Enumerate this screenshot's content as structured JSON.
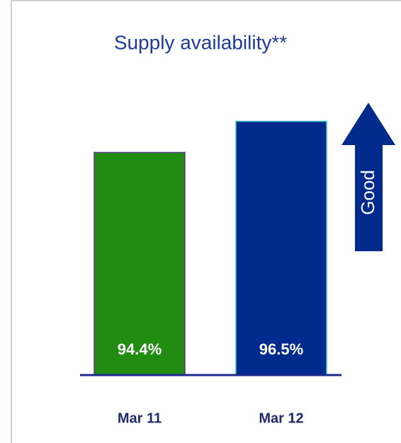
{
  "chart_data": {
    "type": "bar",
    "title": "Supply availability**",
    "categories": [
      "Mar 11",
      "Mar 12"
    ],
    "series": [
      {
        "colors": [
          "#228b11",
          "#002b8c"
        ],
        "values": [
          94.4,
          96.5
        ],
        "value_labels": [
          "94.4%",
          "96.5%"
        ]
      }
    ],
    "ylim": [
      79.4,
      100
    ],
    "annotation": "Good"
  }
}
